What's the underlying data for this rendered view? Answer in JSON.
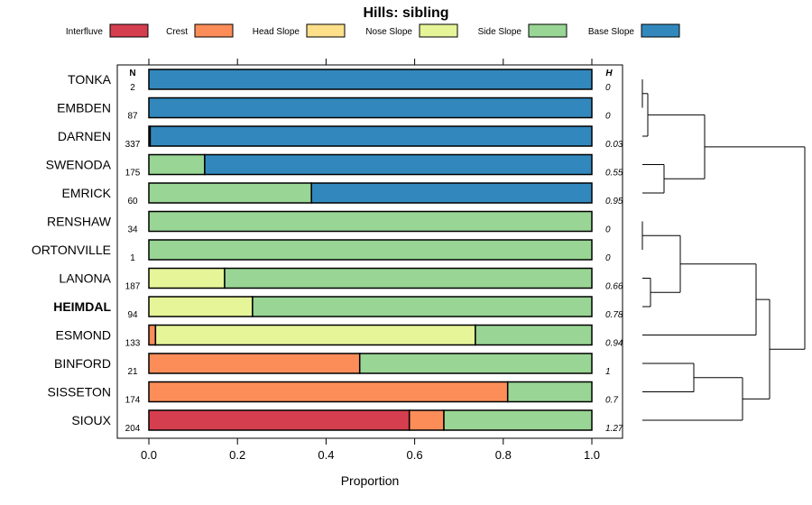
{
  "chart_data": {
    "type": "bar",
    "stacked": true,
    "orientation": "horizontal",
    "title": "Hills: sibling",
    "xlabel": "Proportion",
    "xlim": [
      0,
      1
    ],
    "xticks": [
      0.0,
      0.2,
      0.4,
      0.6,
      0.8,
      1.0
    ],
    "xtick_labels": [
      "0.0",
      "0.2",
      "0.4",
      "0.6",
      "0.8",
      "1.0"
    ],
    "n_header": "N",
    "h_header": "H",
    "highlighted": "HEIMDAL",
    "legend_position": "top",
    "legend": [
      {
        "name": "Interfluve",
        "color": "#d53e4f"
      },
      {
        "name": "Crest",
        "color": "#fc8d59"
      },
      {
        "name": "Head Slope",
        "color": "#fee08b"
      },
      {
        "name": "Nose Slope",
        "color": "#e6f598"
      },
      {
        "name": "Side Slope",
        "color": "#99d594"
      },
      {
        "name": "Base Slope",
        "color": "#3288bd"
      }
    ],
    "rows": [
      {
        "label": "TONKA",
        "n": "2",
        "h": "0",
        "values": [
          0,
          0,
          0,
          0,
          0,
          1.0
        ]
      },
      {
        "label": "EMBDEN",
        "n": "87",
        "h": "0",
        "values": [
          0,
          0,
          0,
          0,
          0,
          1.0
        ]
      },
      {
        "label": "DARNEN",
        "n": "337",
        "h": "0.03",
        "values": [
          0,
          0,
          0,
          0,
          0.003,
          0.997
        ]
      },
      {
        "label": "SWENODA",
        "n": "175",
        "h": "0.55",
        "values": [
          0,
          0,
          0,
          0,
          0.126,
          0.874
        ]
      },
      {
        "label": "EMRICK",
        "n": "60",
        "h": "0.95",
        "values": [
          0,
          0,
          0,
          0,
          0.367,
          0.633
        ]
      },
      {
        "label": "RENSHAW",
        "n": "34",
        "h": "0",
        "values": [
          0,
          0,
          0,
          0,
          1.0,
          0
        ]
      },
      {
        "label": "ORTONVILLE",
        "n": "1",
        "h": "0",
        "values": [
          0,
          0,
          0,
          0,
          1.0,
          0
        ]
      },
      {
        "label": "LANONA",
        "n": "187",
        "h": "0.66",
        "values": [
          0,
          0,
          0,
          0.171,
          0.829,
          0
        ]
      },
      {
        "label": "HEIMDAL",
        "n": "94",
        "h": "0.78",
        "values": [
          0,
          0,
          0,
          0.234,
          0.766,
          0
        ]
      },
      {
        "label": "ESMOND",
        "n": "133",
        "h": "0.94",
        "values": [
          0,
          0.015,
          0,
          0.722,
          0.263,
          0
        ]
      },
      {
        "label": "BINFORD",
        "n": "21",
        "h": "1",
        "values": [
          0,
          0.476,
          0,
          0,
          0.524,
          0
        ]
      },
      {
        "label": "SISSETON",
        "n": "174",
        "h": "0.7",
        "values": [
          0,
          0.81,
          0,
          0,
          0.19,
          0
        ]
      },
      {
        "label": "SIOUX",
        "n": "204",
        "h": "1.27",
        "values": [
          0.588,
          0.078,
          0,
          0,
          0.334,
          0
        ]
      }
    ],
    "dendrogram": {
      "leaves": [
        "TONKA",
        "EMBDEN",
        "DARNEN",
        "SWENODA",
        "EMRICK",
        "RENSHAW",
        "ORTONVILLE",
        "LANONA",
        "HEIMDAL",
        "ESMOND",
        "BINFORD",
        "SISSETON",
        "SIOUX"
      ],
      "merges": [
        {
          "left": "TONKA",
          "right": "EMBDEN",
          "height": 0.0
        },
        {
          "left": "RENSHAW",
          "right": "ORTONVILLE",
          "height": 0.0
        },
        {
          "left": "{TONKA,EMBDEN}",
          "right": "DARNEN",
          "height": 0.02
        },
        {
          "left": "LANONA",
          "right": "HEIMDAL",
          "height": 0.03
        },
        {
          "left": "SWENODA",
          "right": "EMRICK",
          "height": 0.08
        },
        {
          "left": "{RENSHAW,ORTONVILLE}",
          "right": "{LANONA,HEIMDAL}",
          "height": 0.14
        },
        {
          "left": "BINFORD",
          "right": "SISSETON",
          "height": 0.19
        },
        {
          "left": "{TONKA,EMBDEN,DARNEN}",
          "right": "{SWENODA,EMRICK}",
          "height": 0.23
        },
        {
          "left": "{BINFORD,SISSETON}",
          "right": "SIOUX",
          "height": 0.37
        },
        {
          "left": "{RENSHAW..HEIMDAL}",
          "right": "ESMOND",
          "height": 0.42
        },
        {
          "left": "{RENSHAW..ESMOND}",
          "right": "{BINFORD..SIOUX}",
          "height": 0.47
        },
        {
          "left": "{TONKA..EMRICK}",
          "right": "{RENSHAW..SIOUX}",
          "height": 0.6
        }
      ]
    }
  }
}
